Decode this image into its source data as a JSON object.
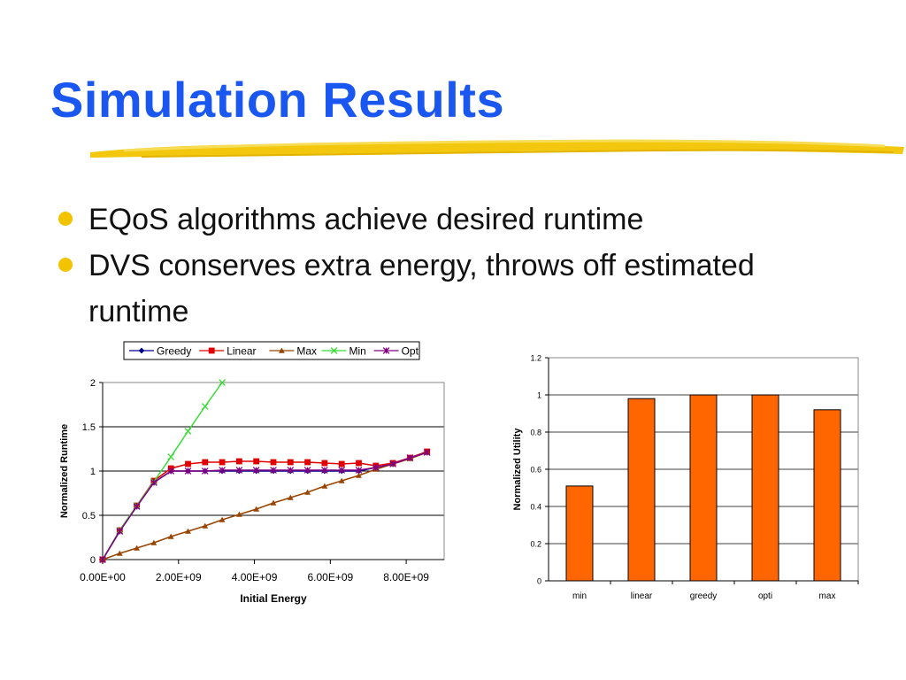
{
  "slide": {
    "title": "Simulation Results",
    "bullets": [
      "EQoS algorithms achieve desired runtime",
      "DVS conserves extra energy, throws off estimated runtime"
    ]
  },
  "colors": {
    "title": "#1a56f0",
    "accent_stroke": "#f2c400",
    "bullet": "#f2c400",
    "greedy": "#00008b",
    "linear": "#e00000",
    "max": "#994400",
    "min": "#33dd33",
    "opt": "#800080",
    "bar": "#ff6600"
  },
  "chart_data": [
    {
      "type": "line",
      "title": "",
      "xlabel": "Initial Energy",
      "ylabel": "Normalized Runtime",
      "xlim": [
        0,
        9000000000
      ],
      "ylim": [
        0,
        2
      ],
      "xticks": [
        0,
        2000000000,
        4000000000,
        6000000000,
        8000000000
      ],
      "xtick_labels": [
        "0.00E+00",
        "2.00E+09",
        "4.00E+09",
        "6.00E+09",
        "8.00E+09"
      ],
      "yticks": [
        0,
        0.5,
        1,
        1.5,
        2
      ],
      "ytick_labels": [
        "0",
        "0.5",
        "1",
        "1.5",
        "2"
      ],
      "grid": "horizontal",
      "legend": "top",
      "series": [
        {
          "name": "Greedy",
          "marker": "diamond",
          "color": "#00008b",
          "x": [
            0,
            450000000,
            900000000,
            1350000000,
            1800000000,
            2250000000,
            2700000000,
            3150000000,
            3600000000,
            4050000000,
            4500000000,
            4950000000,
            5400000000,
            5850000000,
            6300000000,
            6750000000,
            7200000000,
            7650000000,
            8100000000,
            8550000000
          ],
          "y": [
            0,
            0.32,
            0.6,
            0.87,
            1.0,
            1.0,
            1.0,
            1.0,
            1.0,
            1.0,
            1.0,
            1.0,
            1.0,
            1.0,
            1.0,
            1.0,
            1.04,
            1.08,
            1.15,
            1.21
          ]
        },
        {
          "name": "Linear",
          "marker": "square",
          "color": "#e00000",
          "x": [
            0,
            450000000,
            900000000,
            1350000000,
            1800000000,
            2250000000,
            2700000000,
            3150000000,
            3600000000,
            4050000000,
            4500000000,
            4950000000,
            5400000000,
            5850000000,
            6300000000,
            6750000000,
            7200000000,
            7650000000,
            8100000000,
            8550000000
          ],
          "y": [
            0,
            0.33,
            0.61,
            0.89,
            1.03,
            1.08,
            1.1,
            1.1,
            1.11,
            1.11,
            1.1,
            1.1,
            1.1,
            1.09,
            1.08,
            1.09,
            1.06,
            1.09,
            1.15,
            1.22
          ]
        },
        {
          "name": "Max",
          "marker": "triangle",
          "color": "#994400",
          "x": [
            0,
            450000000,
            900000000,
            1350000000,
            1800000000,
            2250000000,
            2700000000,
            3150000000,
            3600000000,
            4050000000,
            4500000000,
            4950000000,
            5400000000,
            5850000000,
            6300000000,
            6750000000,
            7200000000,
            7650000000,
            8100000000,
            8550000000
          ],
          "y": [
            0,
            0.07,
            0.13,
            0.19,
            0.26,
            0.32,
            0.38,
            0.45,
            0.51,
            0.57,
            0.64,
            0.7,
            0.76,
            0.83,
            0.89,
            0.95,
            1.02,
            1.08,
            1.14,
            1.21
          ]
        },
        {
          "name": "Min",
          "marker": "x",
          "color": "#33dd33",
          "x": [
            0,
            450000000,
            900000000,
            1350000000,
            1800000000,
            2250000000,
            2700000000,
            3150000000
          ],
          "y": [
            0,
            0.33,
            0.61,
            0.88,
            1.16,
            1.45,
            1.73,
            2.0
          ]
        },
        {
          "name": "Opt",
          "marker": "star",
          "color": "#800080",
          "x": [
            0,
            450000000,
            900000000,
            1350000000,
            1800000000,
            2250000000,
            2700000000,
            3150000000,
            3600000000,
            4050000000,
            4500000000,
            4950000000,
            5400000000,
            5850000000,
            6300000000,
            6750000000,
            7200000000,
            7650000000,
            8100000000,
            8550000000
          ],
          "y": [
            0,
            0.32,
            0.6,
            0.87,
            1.0,
            1.0,
            1.0,
            1.01,
            1.01,
            1.01,
            1.01,
            1.01,
            1.01,
            1.01,
            1.01,
            1.01,
            1.04,
            1.08,
            1.15,
            1.21
          ]
        }
      ]
    },
    {
      "type": "bar",
      "title": "",
      "xlabel": "",
      "ylabel": "Normalized Utility",
      "ylim": [
        0,
        1.2
      ],
      "yticks": [
        0,
        0.2,
        0.4,
        0.6,
        0.8,
        1,
        1.2
      ],
      "ytick_labels": [
        "0",
        "0.2",
        "0.4",
        "0.6",
        "0.8",
        "1",
        "1.2"
      ],
      "grid": "horizontal",
      "legend": "none",
      "categories": [
        "min",
        "linear",
        "greedy",
        "opti",
        "max"
      ],
      "values": [
        0.51,
        0.98,
        1.0,
        1.0,
        0.92
      ],
      "color": "#ff6600"
    }
  ]
}
